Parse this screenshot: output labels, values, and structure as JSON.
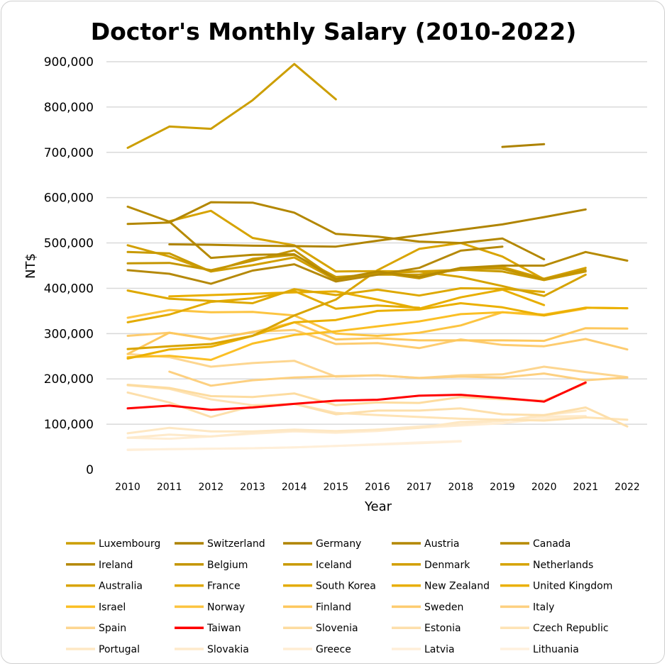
{
  "chart_data": {
    "type": "line",
    "title": "Doctor's Monthly Salary (2010-2022)",
    "xlabel": "Year",
    "ylabel": "NT$",
    "x": [
      2010,
      2011,
      2012,
      2013,
      2014,
      2015,
      2016,
      2017,
      2018,
      2019,
      2020,
      2021,
      2022
    ],
    "ylim": [
      0,
      900000
    ],
    "yticks": [
      "0",
      "100,000",
      "200,000",
      "300,000",
      "400,000",
      "500,000",
      "600,000",
      "700,000",
      "800,000",
      "900,000"
    ],
    "grid": "horizontal",
    "legend_placement": "bottom",
    "series": [
      {
        "name": "Luxembourg",
        "color": "#cc9e00",
        "values": [
          710000,
          757000,
          752000,
          815000,
          895000,
          817000,
          null,
          null,
          null,
          null,
          null,
          null,
          null
        ]
      },
      {
        "name": "Switzerland",
        "color": "#ad8200",
        "values": [
          null,
          null,
          null,
          null,
          null,
          null,
          null,
          null,
          null,
          712000,
          718000,
          null,
          null
        ]
      },
      {
        "name": "Germany",
        "color": "#b08400",
        "values": [
          null,
          497000,
          496000,
          494000,
          493000,
          492000,
          505000,
          517000,
          529000,
          541000,
          557000,
          574000,
          null
        ]
      },
      {
        "name": "Austria",
        "color": "#b38700",
        "values": [
          542000,
          545000,
          590000,
          589000,
          567000,
          520000,
          514000,
          503000,
          500000,
          510000,
          464000,
          null,
          null
        ]
      },
      {
        "name": "Canada",
        "color": "#b68a00",
        "values": [
          580000,
          547000,
          467000,
          474000,
          475000,
          420000,
          437000,
          425000,
          445000,
          450000,
          450000,
          480000,
          461000
        ]
      },
      {
        "name": "Ireland",
        "color": "#b5890a",
        "values": [
          440000,
          432000,
          410000,
          439000,
          453000,
          415000,
          430000,
          445000,
          483000,
          492000,
          null,
          null,
          null
        ]
      },
      {
        "name": "Belgium",
        "color": "#c49500",
        "values": [
          455000,
          456000,
          440000,
          461000,
          484000,
          420000,
          435000,
          422000,
          445000,
          443000,
          420000,
          440000,
          null
        ]
      },
      {
        "name": "Iceland",
        "color": "#c99a00",
        "values": [
          480000,
          477000,
          437000,
          465000,
          474000,
          425000,
          430000,
          430000,
          441000,
          437000,
          418000,
          437000,
          null
        ]
      },
      {
        "name": "Denmark",
        "color": "#d29f00",
        "values": [
          495000,
          470000,
          437000,
          451000,
          468000,
          418000,
          432000,
          437000,
          441000,
          447000,
          421000,
          445000,
          null
        ]
      },
      {
        "name": "Netherlands",
        "color": "#d6a300",
        "values": [
          null,
          548000,
          571000,
          511000,
          495000,
          437000,
          438000,
          437000,
          425000,
          405000,
          383000,
          430000,
          null
        ]
      },
      {
        "name": "Australia",
        "color": "#d9a400",
        "values": [
          266000,
          272000,
          277000,
          295000,
          340000,
          375000,
          440000,
          487000,
          500000,
          470000,
          420000,
          null,
          null
        ]
      },
      {
        "name": "France",
        "color": "#dea800",
        "values": [
          395000,
          377000,
          372000,
          367000,
          398000,
          385000,
          397000,
          384000,
          400000,
          399000,
          392000,
          null,
          null
        ]
      },
      {
        "name": "South Korea",
        "color": "#e3ab00",
        "values": [
          325000,
          342000,
          370000,
          378000,
          394000,
          355000,
          362000,
          357000,
          null,
          null,
          null,
          null,
          null
        ]
      },
      {
        "name": "New Zealand",
        "color": "#e8ae00",
        "values": [
          null,
          382000,
          385000,
          388000,
          391000,
          393000,
          375000,
          355000,
          380000,
          397000,
          363000,
          null,
          null
        ]
      },
      {
        "name": "United Kingdom",
        "color": "#ebb000",
        "values": [
          245000,
          265000,
          271000,
          295000,
          325000,
          330000,
          350000,
          353000,
          367000,
          358000,
          340000,
          357000,
          356000
        ]
      },
      {
        "name": "Israel",
        "color": "#fbbf24",
        "values": [
          248000,
          251000,
          242000,
          278000,
          297000,
          305000,
          316000,
          327000,
          343000,
          347000,
          342000,
          357000,
          356000
        ]
      },
      {
        "name": "Norway",
        "color": "#fcc441",
        "values": [
          335000,
          352000,
          347000,
          348000,
          340000,
          300000,
          295000,
          302000,
          318000,
          347000,
          340000,
          355000,
          null
        ]
      },
      {
        "name": "Finland",
        "color": "#fdc85e",
        "values": [
          255000,
          302000,
          288000,
          303000,
          325000,
          287000,
          290000,
          285000,
          285000,
          285000,
          284000,
          312000,
          311000
        ]
      },
      {
        "name": "Sweden",
        "color": "#fdcc70",
        "values": [
          295000,
          302000,
          287000,
          304000,
          308000,
          277000,
          279000,
          268000,
          287000,
          275000,
          272000,
          288000,
          265000
        ]
      },
      {
        "name": "Italy",
        "color": "#fdd080",
        "values": [
          null,
          216000,
          185000,
          197000,
          203000,
          206000,
          208000,
          202000,
          205000,
          203000,
          212000,
          197000,
          203000
        ]
      },
      {
        "name": "Spain",
        "color": "#fdd690",
        "values": [
          255000,
          248000,
          227000,
          235000,
          240000,
          205000,
          208000,
          202000,
          208000,
          210000,
          227000,
          215000,
          204000
        ]
      },
      {
        "name": "Taiwan",
        "color": "#ff0000",
        "values": [
          135000,
          141000,
          132000,
          137000,
          145000,
          152000,
          154000,
          163000,
          165000,
          158000,
          150000,
          192000,
          null
        ]
      },
      {
        "name": "Slovenia",
        "color": "#fddca0",
        "values": [
          187000,
          180000,
          162000,
          160000,
          168000,
          142000,
          148000,
          147000,
          160000,
          155000,
          152000,
          190000,
          null
        ]
      },
      {
        "name": "Estonia",
        "color": "#fddfab",
        "values": [
          170000,
          148000,
          116000,
          140000,
          145000,
          122000,
          130000,
          130000,
          135000,
          122000,
          120000,
          137000,
          95000
        ]
      },
      {
        "name": "Czech Republic",
        "color": "#fee3b5",
        "values": [
          186000,
          178000,
          155000,
          142000,
          145000,
          125000,
          120000,
          116000,
          112000,
          110000,
          108000,
          115000,
          110000
        ]
      },
      {
        "name": "Portugal",
        "color": "#fee8c4",
        "values": [
          80000,
          92000,
          84000,
          84000,
          88000,
          85000,
          88000,
          92000,
          105000,
          107000,
          120000,
          130000,
          null
        ]
      },
      {
        "name": "Slovakia",
        "color": "#feeacb",
        "values": [
          70000,
          77000,
          73000,
          81000,
          86000,
          83000,
          88000,
          95000,
          100000,
          108000,
          117000,
          118000,
          null
        ]
      },
      {
        "name": "Greece",
        "color": "#ffedd3",
        "values": [
          70000,
          68000,
          73000,
          79000,
          84000,
          81000,
          85000,
          92000,
          97000,
          102000,
          112000,
          118000,
          null
        ]
      },
      {
        "name": "Latvia",
        "color": "#ffefd9",
        "values": [
          43000,
          45000,
          46000,
          47000,
          49000,
          52000,
          55000,
          58000,
          62000,
          null,
          null,
          null,
          null
        ]
      },
      {
        "name": "Lithuania",
        "color": "#fff1de",
        "values": [
          44000,
          45000,
          46000,
          47000,
          49000,
          52000,
          56000,
          60000,
          63000,
          null,
          null,
          null,
          null
        ]
      }
    ]
  }
}
